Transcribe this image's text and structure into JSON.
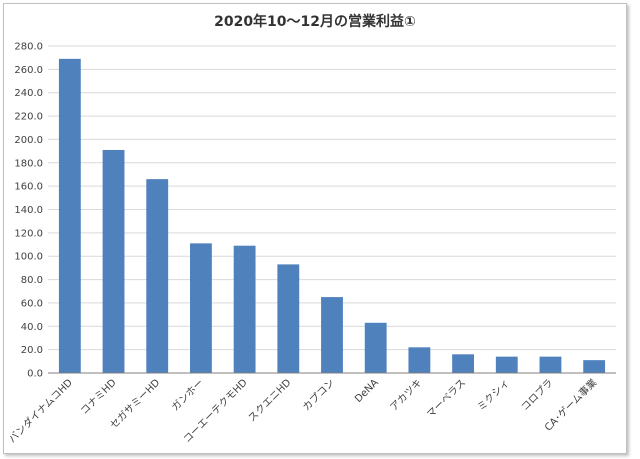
{
  "chart_data": {
    "type": "bar",
    "title": "2020年10～12月の営業利益①",
    "xlabel": "",
    "ylabel": "",
    "ylim": [
      0,
      280
    ],
    "yticks": [
      "0.0",
      "20.0",
      "40.0",
      "60.0",
      "80.0",
      "100.0",
      "120.0",
      "140.0",
      "160.0",
      "180.0",
      "200.0",
      "220.0",
      "240.0",
      "260.0",
      "280.0"
    ],
    "grid": true,
    "legend": "none",
    "bar_color": "#4f81bd",
    "categories": [
      "バンダイナムコHD",
      "コナミHD",
      "セガサミーHD",
      "ガンホー",
      "コーエーテクモHD",
      "スクエニHD",
      "カプコン",
      "DeNA",
      "アカツキ",
      "マーベラス",
      "ミクシィ",
      "コロプラ",
      "CA･ゲーム事業"
    ],
    "values": [
      269,
      191,
      166,
      111,
      109,
      93,
      65,
      43,
      22,
      16,
      14,
      14,
      11
    ]
  }
}
